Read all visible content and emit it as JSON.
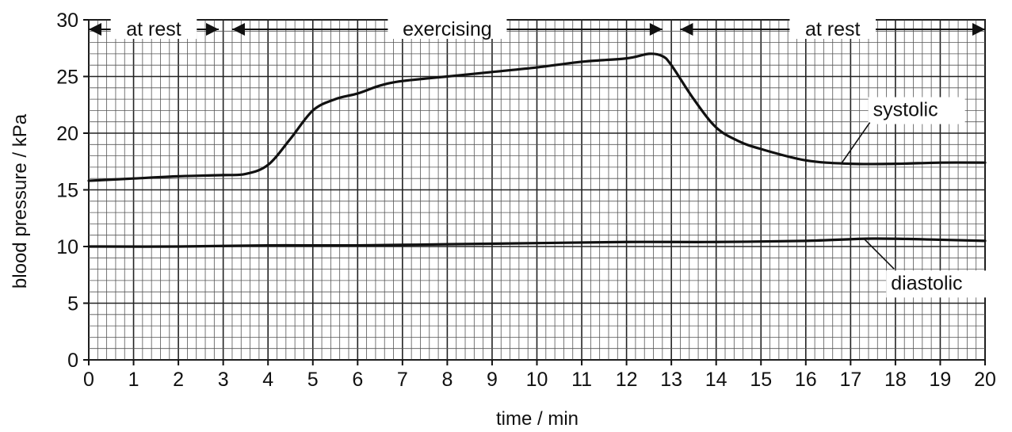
{
  "chart_data": {
    "type": "line",
    "title": "",
    "xlabel": "time / min",
    "ylabel": "blood pressure / kPa",
    "xlim": [
      0,
      20
    ],
    "ylim": [
      0,
      30
    ],
    "x_ticks": [
      "0",
      "1",
      "2",
      "3",
      "4",
      "5",
      "6",
      "7",
      "8",
      "9",
      "10",
      "11",
      "12",
      "13",
      "14",
      "15",
      "16",
      "17",
      "18",
      "19",
      "20"
    ],
    "y_ticks": [
      "0",
      "5",
      "10",
      "15",
      "20",
      "25",
      "30"
    ],
    "grid": true,
    "phases": [
      {
        "label": "at rest",
        "start": 0,
        "end": 2.9
      },
      {
        "label": "exercising",
        "start": 3.2,
        "end": 12.8
      },
      {
        "label": "at rest",
        "start": 13.2,
        "end": 20
      }
    ],
    "series": [
      {
        "name": "systolic",
        "points": [
          [
            0,
            15.8
          ],
          [
            1,
            16.0
          ],
          [
            2,
            16.2
          ],
          [
            3,
            16.3
          ],
          [
            3.5,
            16.4
          ],
          [
            4,
            17.2
          ],
          [
            4.5,
            19.5
          ],
          [
            5,
            22.0
          ],
          [
            5.5,
            23.0
          ],
          [
            6,
            23.5
          ],
          [
            6.5,
            24.2
          ],
          [
            7,
            24.6
          ],
          [
            8,
            25.0
          ],
          [
            9,
            25.4
          ],
          [
            10,
            25.8
          ],
          [
            11,
            26.3
          ],
          [
            12,
            26.6
          ],
          [
            12.5,
            27.0
          ],
          [
            12.8,
            26.8
          ],
          [
            13,
            26.0
          ],
          [
            13.5,
            23.0
          ],
          [
            14,
            20.5
          ],
          [
            14.5,
            19.3
          ],
          [
            15,
            18.6
          ],
          [
            16,
            17.6
          ],
          [
            17,
            17.3
          ],
          [
            18,
            17.3
          ],
          [
            19,
            17.4
          ],
          [
            20,
            17.4
          ]
        ],
        "label_x": 17.5,
        "label_y": 21.5
      },
      {
        "name": "diastolic",
        "points": [
          [
            0,
            10.0
          ],
          [
            2,
            10.0
          ],
          [
            4,
            10.1
          ],
          [
            6,
            10.1
          ],
          [
            8,
            10.2
          ],
          [
            10,
            10.3
          ],
          [
            12,
            10.4
          ],
          [
            14,
            10.4
          ],
          [
            16,
            10.5
          ],
          [
            17.5,
            10.7
          ],
          [
            19,
            10.6
          ],
          [
            20,
            10.5
          ]
        ],
        "label_x": 17.9,
        "label_y": 6.2
      }
    ]
  }
}
